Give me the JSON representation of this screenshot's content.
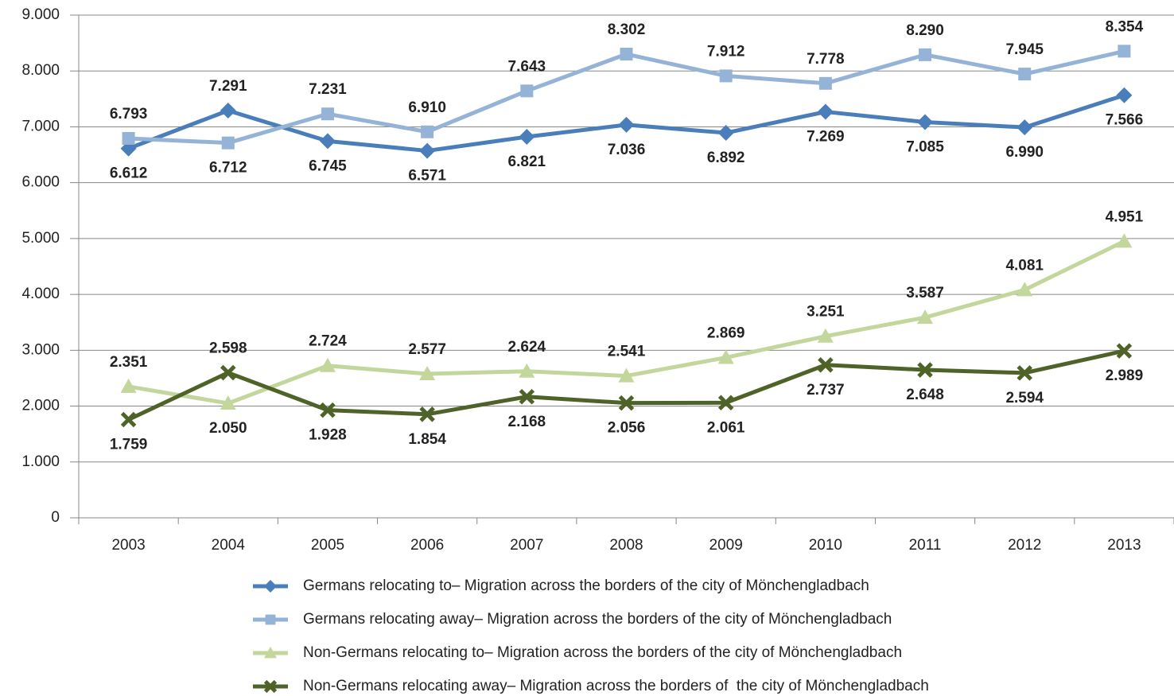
{
  "chart_data": {
    "type": "line",
    "categories": [
      "2003",
      "2004",
      "2005",
      "2006",
      "2007",
      "2008",
      "2009",
      "2010",
      "2011",
      "2012",
      "2013"
    ],
    "ylim": [
      0,
      9000
    ],
    "yticks": [
      0,
      {
        "value": 1000,
        "label": "1.000"
      },
      {
        "value": 2000,
        "label": "2.000"
      },
      {
        "value": 3000,
        "label": "3.000"
      },
      {
        "value": 4000,
        "label": "4.000"
      },
      {
        "value": 5000,
        "label": "5.000"
      },
      {
        "value": 6000,
        "label": "6.000"
      },
      {
        "value": 7000,
        "label": "7.000"
      },
      {
        "value": 8000,
        "label": "8.000"
      },
      {
        "value": 9000,
        "label": "9.000"
      }
    ],
    "grid": true,
    "legend": "bottom",
    "series": [
      {
        "name": "Germans relocating to– Migration across the borders of the city of Mönchengladbach",
        "color": "#4a7ebb",
        "marker": "diamond",
        "values": [
          6612,
          7291,
          6745,
          6571,
          6821,
          7036,
          6892,
          7269,
          7085,
          6990,
          7566
        ],
        "value_labels": [
          "6.612",
          "7.291",
          "6.745",
          "6.571",
          "6.821",
          "7.036",
          "6.892",
          "7.269",
          "7.085",
          "6.990",
          "7.566"
        ]
      },
      {
        "name": "Germans relocating away– Migration across the borders of the city of Mönchengladbach",
        "color": "#95b3d7",
        "marker": "square",
        "values": [
          6793,
          6712,
          7231,
          6910,
          7643,
          8302,
          7912,
          7778,
          8290,
          7945,
          8354
        ],
        "value_labels": [
          "6.793",
          "6.712",
          "7.231",
          "6.910",
          "7.643",
          "8.302",
          "7.912",
          "7.778",
          "8.290",
          "7.945",
          "8.354"
        ]
      },
      {
        "name": "Non-Germans relocating to– Migration across the borders of the city of Mönchengladbach",
        "color": "#c3d69b",
        "marker": "triangle",
        "values": [
          2351,
          2050,
          2724,
          2577,
          2624,
          2541,
          2869,
          3251,
          3587,
          4081,
          4951
        ],
        "value_labels": [
          "2.351",
          "2.050",
          "2.724",
          "2.577",
          "2.624",
          "2.541",
          "2.869",
          "3.251",
          "3.587",
          "4.081",
          "4.951"
        ]
      },
      {
        "name": "Non-Germans relocating away– Migration across the borders of  the city of Mönchengladbach",
        "color": "#4f6228",
        "marker": "cross",
        "values": [
          1759,
          2598,
          1928,
          1854,
          2168,
          2056,
          2061,
          2737,
          2648,
          2594,
          2989
        ],
        "value_labels": [
          "1.759",
          "2.598",
          "1.928",
          "1.854",
          "2.168",
          "2.056",
          "2.061",
          "2.737",
          "2.648",
          "2.594",
          "2.989"
        ]
      }
    ]
  }
}
